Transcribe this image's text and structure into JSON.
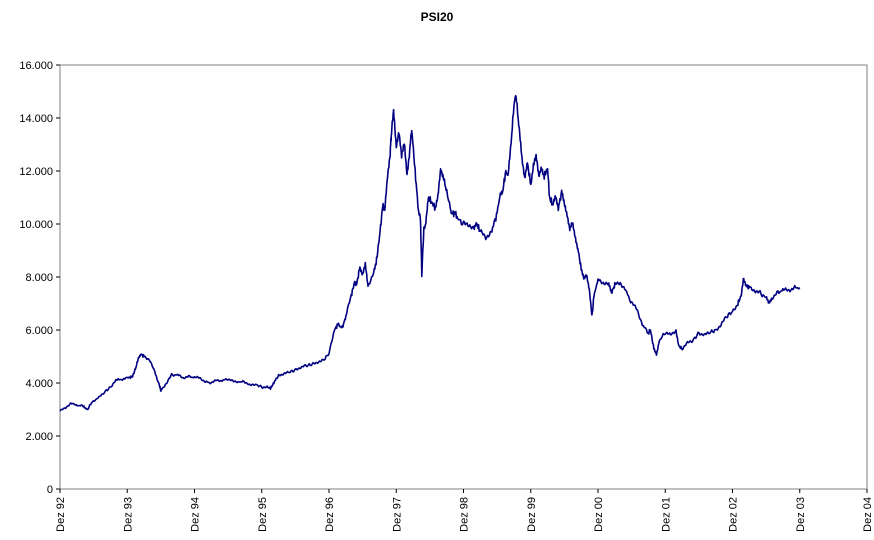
{
  "chart_data": {
    "type": "line",
    "title": "PSI20",
    "xlabel": "",
    "ylabel": "",
    "ylim": [
      0,
      16000
    ],
    "grid": false,
    "legend": "none",
    "y_ticks": [
      {
        "value": 0,
        "label": "0"
      },
      {
        "value": 2000,
        "label": "2.000"
      },
      {
        "value": 4000,
        "label": "4.000"
      },
      {
        "value": 6000,
        "label": "6.000"
      },
      {
        "value": 8000,
        "label": "8.000"
      },
      {
        "value": 10000,
        "label": "10.000"
      },
      {
        "value": 12000,
        "label": "12.000"
      },
      {
        "value": 14000,
        "label": "14.000"
      },
      {
        "value": 16000,
        "label": "16.000"
      }
    ],
    "x_ticks": [
      {
        "value": 1992.92,
        "label": "Dez 92"
      },
      {
        "value": 1993.92,
        "label": "Dez 93"
      },
      {
        "value": 1994.92,
        "label": "Dez 94"
      },
      {
        "value": 1995.92,
        "label": "Dez 95"
      },
      {
        "value": 1996.92,
        "label": "Dez 96"
      },
      {
        "value": 1997.92,
        "label": "Dez 97"
      },
      {
        "value": 1998.92,
        "label": "Dez 98"
      },
      {
        "value": 1999.92,
        "label": "Dez 99"
      },
      {
        "value": 2000.92,
        "label": "Dez 00"
      },
      {
        "value": 2001.92,
        "label": "Dez 01"
      },
      {
        "value": 2002.92,
        "label": "Dez 02"
      },
      {
        "value": 2003.92,
        "label": "Dez 03"
      },
      {
        "value": 2004.92,
        "label": "Dez 04"
      }
    ],
    "xlim": [
      1992.92,
      2004.92
    ],
    "series": [
      {
        "color": "#000080",
        "points": [
          [
            1992.92,
            2950
          ],
          [
            1993.0,
            3050
          ],
          [
            1993.08,
            3250
          ],
          [
            1993.16,
            3150
          ],
          [
            1993.25,
            3150
          ],
          [
            1993.3,
            3050
          ],
          [
            1993.33,
            3000
          ],
          [
            1993.4,
            3300
          ],
          [
            1993.5,
            3450
          ],
          [
            1993.58,
            3650
          ],
          [
            1993.67,
            3850
          ],
          [
            1993.75,
            4100
          ],
          [
            1993.85,
            4150
          ],
          [
            1993.95,
            4200
          ],
          [
            1994.0,
            4250
          ],
          [
            1994.05,
            4600
          ],
          [
            1994.08,
            4900
          ],
          [
            1994.12,
            5100
          ],
          [
            1994.17,
            5000
          ],
          [
            1994.25,
            4900
          ],
          [
            1994.33,
            4400
          ],
          [
            1994.4,
            3900
          ],
          [
            1994.42,
            3700
          ],
          [
            1994.5,
            4000
          ],
          [
            1994.58,
            4300
          ],
          [
            1994.67,
            4300
          ],
          [
            1994.75,
            4200
          ],
          [
            1994.83,
            4250
          ],
          [
            1994.92,
            4200
          ],
          [
            1995.0,
            4200
          ],
          [
            1995.08,
            4050
          ],
          [
            1995.17,
            4000
          ],
          [
            1995.25,
            4100
          ],
          [
            1995.33,
            4100
          ],
          [
            1995.42,
            4150
          ],
          [
            1995.5,
            4050
          ],
          [
            1995.58,
            4050
          ],
          [
            1995.67,
            4050
          ],
          [
            1995.75,
            3900
          ],
          [
            1995.83,
            3950
          ],
          [
            1995.92,
            3850
          ],
          [
            1996.0,
            3850
          ],
          [
            1996.05,
            3800
          ],
          [
            1996.1,
            4000
          ],
          [
            1996.17,
            4300
          ],
          [
            1996.25,
            4350
          ],
          [
            1996.33,
            4400
          ],
          [
            1996.42,
            4500
          ],
          [
            1996.5,
            4600
          ],
          [
            1996.58,
            4650
          ],
          [
            1996.67,
            4700
          ],
          [
            1996.75,
            4800
          ],
          [
            1996.83,
            4850
          ],
          [
            1996.92,
            5100
          ],
          [
            1997.0,
            6000
          ],
          [
            1997.05,
            6200
          ],
          [
            1997.12,
            6100
          ],
          [
            1997.17,
            6500
          ],
          [
            1997.25,
            7300
          ],
          [
            1997.3,
            7800
          ],
          [
            1997.33,
            7700
          ],
          [
            1997.38,
            8400
          ],
          [
            1997.42,
            8100
          ],
          [
            1997.46,
            8450
          ],
          [
            1997.5,
            7600
          ],
          [
            1997.58,
            8200
          ],
          [
            1997.62,
            8500
          ],
          [
            1997.67,
            9500
          ],
          [
            1997.72,
            10700
          ],
          [
            1997.75,
            10500
          ],
          [
            1997.79,
            11800
          ],
          [
            1997.83,
            12700
          ],
          [
            1997.85,
            13500
          ],
          [
            1997.88,
            14300
          ],
          [
            1997.92,
            13000
          ],
          [
            1997.96,
            13500
          ],
          [
            1998.0,
            12500
          ],
          [
            1998.04,
            13000
          ],
          [
            1998.08,
            11900
          ],
          [
            1998.12,
            12800
          ],
          [
            1998.15,
            13600
          ],
          [
            1998.2,
            12000
          ],
          [
            1998.25,
            10500
          ],
          [
            1998.28,
            10200
          ],
          [
            1998.3,
            8100
          ],
          [
            1998.33,
            9800
          ],
          [
            1998.36,
            10000
          ],
          [
            1998.4,
            11000
          ],
          [
            1998.45,
            10800
          ],
          [
            1998.5,
            10600
          ],
          [
            1998.54,
            11000
          ],
          [
            1998.58,
            12000
          ],
          [
            1998.62,
            11800
          ],
          [
            1998.67,
            11200
          ],
          [
            1998.75,
            10400
          ],
          [
            1998.8,
            10400
          ],
          [
            1998.83,
            10200
          ],
          [
            1998.92,
            10000
          ],
          [
            1999.0,
            10000
          ],
          [
            1999.08,
            9800
          ],
          [
            1999.12,
            10000
          ],
          [
            1999.17,
            9700
          ],
          [
            1999.25,
            9500
          ],
          [
            1999.33,
            9700
          ],
          [
            1999.4,
            10200
          ],
          [
            1999.46,
            11000
          ],
          [
            1999.5,
            11200
          ],
          [
            1999.55,
            12000
          ],
          [
            1999.58,
            11800
          ],
          [
            1999.62,
            12800
          ],
          [
            1999.67,
            14500
          ],
          [
            1999.7,
            14900
          ],
          [
            1999.75,
            13500
          ],
          [
            1999.79,
            12500
          ],
          [
            1999.83,
            11800
          ],
          [
            1999.87,
            12300
          ],
          [
            1999.92,
            11500
          ],
          [
            1999.96,
            12200
          ],
          [
            2000.0,
            12500
          ],
          [
            2000.04,
            11800
          ],
          [
            2000.08,
            12200
          ],
          [
            2000.12,
            11800
          ],
          [
            2000.17,
            12100
          ],
          [
            2000.2,
            11000
          ],
          [
            2000.25,
            10700
          ],
          [
            2000.29,
            11000
          ],
          [
            2000.33,
            10600
          ],
          [
            2000.38,
            11200
          ],
          [
            2000.42,
            10800
          ],
          [
            2000.46,
            10400
          ],
          [
            2000.5,
            9800
          ],
          [
            2000.54,
            10000
          ],
          [
            2000.58,
            9500
          ],
          [
            2000.62,
            9100
          ],
          [
            2000.67,
            8300
          ],
          [
            2000.71,
            8000
          ],
          [
            2000.75,
            8100
          ],
          [
            2000.79,
            7500
          ],
          [
            2000.83,
            6500
          ],
          [
            2000.86,
            7300
          ],
          [
            2000.92,
            7900
          ],
          [
            2001.0,
            7800
          ],
          [
            2001.08,
            7700
          ],
          [
            2001.12,
            7400
          ],
          [
            2001.17,
            7700
          ],
          [
            2001.25,
            7800
          ],
          [
            2001.33,
            7500
          ],
          [
            2001.42,
            7000
          ],
          [
            2001.5,
            6800
          ],
          [
            2001.58,
            6200
          ],
          [
            2001.67,
            5900
          ],
          [
            2001.7,
            6000
          ],
          [
            2001.75,
            5300
          ],
          [
            2001.79,
            5100
          ],
          [
            2001.83,
            5600
          ],
          [
            2001.92,
            5900
          ],
          [
            2002.0,
            5800
          ],
          [
            2002.08,
            6000
          ],
          [
            2002.12,
            5400
          ],
          [
            2002.17,
            5300
          ],
          [
            2002.25,
            5500
          ],
          [
            2002.33,
            5600
          ],
          [
            2002.42,
            5900
          ],
          [
            2002.5,
            5800
          ],
          [
            2002.58,
            5900
          ],
          [
            2002.67,
            6000
          ],
          [
            2002.75,
            6200
          ],
          [
            2002.83,
            6500
          ],
          [
            2002.92,
            6700
          ],
          [
            2003.0,
            7000
          ],
          [
            2003.05,
            7300
          ],
          [
            2003.08,
            7900
          ],
          [
            2003.12,
            7700
          ],
          [
            2003.17,
            7600
          ],
          [
            2003.25,
            7500
          ],
          [
            2003.33,
            7400
          ],
          [
            2003.42,
            7200
          ],
          [
            2003.46,
            7000
          ],
          [
            2003.5,
            7200
          ],
          [
            2003.58,
            7400
          ],
          [
            2003.67,
            7500
          ],
          [
            2003.75,
            7500
          ],
          [
            2003.83,
            7600
          ],
          [
            2003.92,
            7600
          ]
        ]
      }
    ]
  }
}
